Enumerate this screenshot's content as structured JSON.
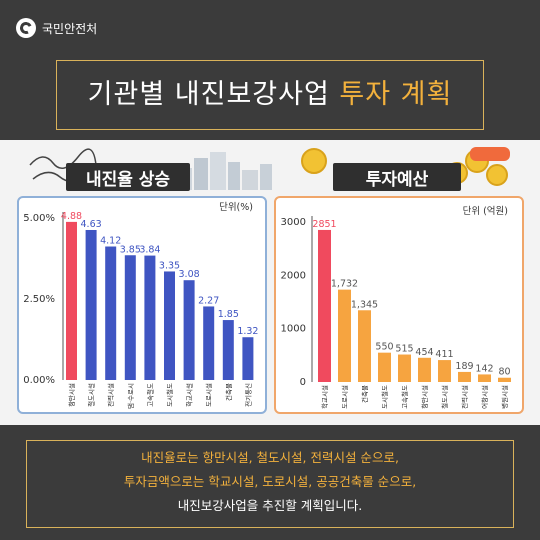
{
  "logo": {
    "text": "국민안전처"
  },
  "title": {
    "part1": "기관별 내진보강사업 ",
    "highlight": "투자 계획"
  },
  "chart_data": [
    {
      "type": "bar",
      "title": "내진율 상승",
      "unit": "단위(%)",
      "categories": [
        "항만시설",
        "철도시설",
        "전력시설",
        "댐·수로시",
        "고속철도",
        "도시철도",
        "학교시설",
        "도로시설",
        "건축물",
        "전기통신"
      ],
      "values": [
        4.88,
        4.63,
        4.12,
        3.85,
        3.84,
        3.35,
        3.08,
        2.27,
        1.85,
        1.32
      ],
      "value_labels": [
        "4.88",
        "4.63",
        "4.12",
        "3.85",
        "3.84",
        "3.35",
        "3.08",
        "2.27",
        "1.85",
        "1.32"
      ],
      "ytick_labels": [
        "5.00%",
        "2.50%",
        "0.00%"
      ],
      "ylim": [
        0,
        5
      ],
      "highlight_index": 0,
      "colors": {
        "bar": "#3f55c2",
        "highlight": "#f04a5e",
        "label": "#3f55c2",
        "highlight_label": "#f04a5e"
      }
    },
    {
      "type": "bar",
      "title": "투자예산",
      "unit": "단위 (억원)",
      "categories": [
        "학교시설",
        "도로시설",
        "건축물",
        "도시철도",
        "고속철도",
        "항만시설",
        "철도시설",
        "전력시설",
        "어항시설",
        "병원시설"
      ],
      "values": [
        2851,
        1732,
        1345,
        550,
        515,
        454,
        411,
        189,
        142,
        80
      ],
      "value_labels": [
        "2851",
        "1,732",
        "1,345",
        "550",
        "515",
        "454",
        "411",
        "189",
        "142",
        "80"
      ],
      "ytick_labels": [
        "3000",
        "2000",
        "1000",
        "0"
      ],
      "ylim": [
        0,
        3000
      ],
      "highlight_index": 0,
      "colors": {
        "bar": "#f6a440",
        "highlight": "#f04a5e",
        "label": "#555555",
        "highlight_label": "#f04a5e"
      }
    }
  ],
  "footer": {
    "line1_parts": [
      "내진율로는 ",
      "항만시설, 철도시설, 전력시설 순",
      "으로,"
    ],
    "line2_parts": [
      "투자금액으로는 ",
      "학교시설, 도로시설, 공공건축물 순",
      "으로,"
    ],
    "line3": "내진보강사업을 추진할 계획입니다."
  }
}
